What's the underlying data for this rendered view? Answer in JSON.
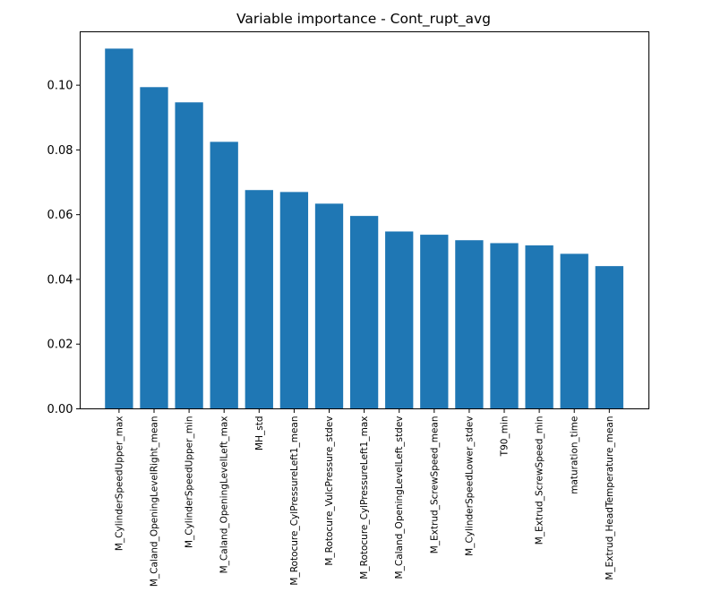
{
  "chart_data": {
    "type": "bar",
    "title": "Variable importance - Cont_rupt_avg",
    "xlabel": "",
    "ylabel": "",
    "ylim": [
      0,
      0.1165
    ],
    "yticks": [
      0.0,
      0.02,
      0.04,
      0.06,
      0.08,
      0.1
    ],
    "ytick_labels": [
      "0.00",
      "0.02",
      "0.04",
      "0.06",
      "0.08",
      "0.10"
    ],
    "categories": [
      "M_CylinderSpeedUpper_max",
      "M_Caland_OpeningLevelRight_mean",
      "M_CylinderSpeedUpper_min",
      "M_Caland_OpeningLevelLeft_max",
      "MH_std",
      "M_Rotocure_CylPressureLeft1_mean",
      "M_Rotocure_VulcPressure_stdev",
      "M_Rotocure_CylPressureLeft1_max",
      "M_Caland_OpeningLevelLeft_stdev",
      "M_Extrud_ScrewSpeed_mean",
      "M_CylinderSpeedLower_stdev",
      "T90_min",
      "M_Extrud_ScrewSpeed_min",
      "maturation_time",
      "M_Extrud_HeadTemperature_mean"
    ],
    "values": [
      0.1113,
      0.0994,
      0.0947,
      0.0825,
      0.0676,
      0.067,
      0.0634,
      0.0596,
      0.0548,
      0.0538,
      0.0521,
      0.0512,
      0.0505,
      0.0479,
      0.0441
    ],
    "bar_color": "#1f77b4",
    "grid": false,
    "legend": "none"
  }
}
